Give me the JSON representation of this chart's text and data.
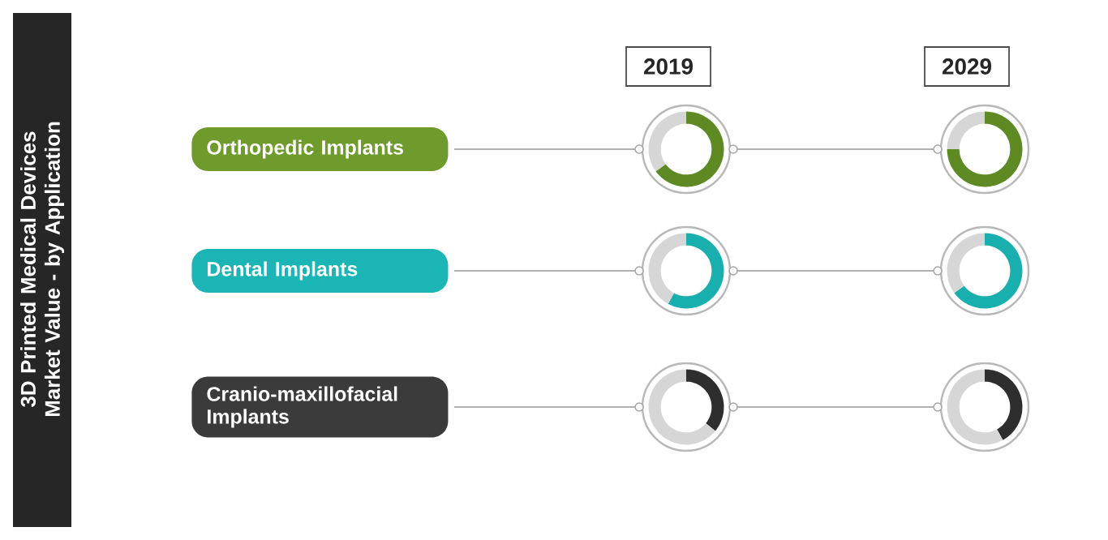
{
  "chart_data": [
    {
      "type": "other",
      "title": "3D Printed Medical Devices Market Value - by Application",
      "categories": [
        "Orthopedic Implants",
        "Dental Implants",
        "Cranio-maxillofacial Implants"
      ],
      "colors": [
        "#6f9a2c",
        "#1cb5b5",
        "#3b3b3b"
      ],
      "annotations": [
        "2019",
        "2029"
      ]
    },
    {
      "type": "donut",
      "categories": [
        null,
        null
      ],
      "values": [
        65,
        35
      ],
      "colors": [
        "#5d8a22",
        "#d6d6d6"
      ]
    },
    {
      "type": "donut",
      "categories": [
        null,
        null
      ],
      "values": [
        75,
        25
      ],
      "colors": [
        "#5d8a22",
        "#d6d6d6"
      ]
    },
    {
      "type": "donut",
      "categories": [
        null,
        null
      ],
      "values": [
        58,
        42
      ],
      "colors": [
        "#1aafaf",
        "#d6d6d6"
      ]
    },
    {
      "type": "donut",
      "categories": [
        null,
        null
      ],
      "values": [
        65,
        35
      ],
      "colors": [
        "#1aafaf",
        "#d6d6d6"
      ]
    },
    {
      "type": "donut",
      "categories": [
        null,
        null
      ],
      "values": [
        36,
        64
      ],
      "colors": [
        "#2e2e2e",
        "#d6d6d6"
      ]
    },
    {
      "type": "donut",
      "categories": [
        null,
        null
      ],
      "values": [
        42,
        58
      ],
      "colors": [
        "#2e2e2e",
        "#d6d6d6"
      ]
    }
  ]
}
